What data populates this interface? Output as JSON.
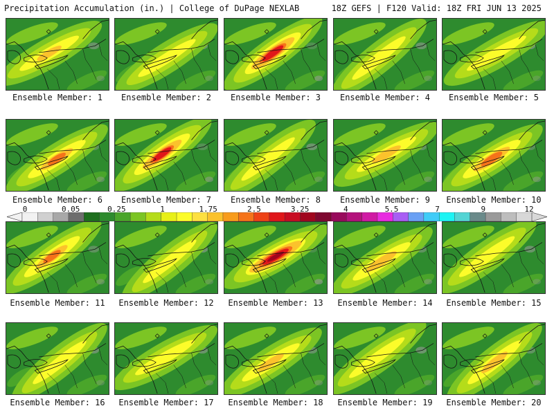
{
  "header": {
    "left": "Precipitation Accumulation (in.) | College of DuPage NEXLAB",
    "right": "18Z GEFS | F120 Valid: 18Z FRI JUN 13 2025"
  },
  "caption_prefix": "Ensemble Member:",
  "members": [
    {
      "id": "1",
      "intensity": 0.35
    },
    {
      "id": "2",
      "intensity": 0.25
    },
    {
      "id": "3",
      "intensity": 0.85
    },
    {
      "id": "4",
      "intensity": 0.3
    },
    {
      "id": "5",
      "intensity": 0.2
    },
    {
      "id": "6",
      "intensity": 0.55
    },
    {
      "id": "7",
      "intensity": 0.75
    },
    {
      "id": "8",
      "intensity": 0.25
    },
    {
      "id": "9",
      "intensity": 0.45
    },
    {
      "id": "10",
      "intensity": 0.65
    },
    {
      "id": "11",
      "intensity": 0.55
    },
    {
      "id": "12",
      "intensity": 0.25
    },
    {
      "id": "13",
      "intensity": 1.0
    },
    {
      "id": "14",
      "intensity": 0.5
    },
    {
      "id": "15",
      "intensity": 0.3
    },
    {
      "id": "16",
      "intensity": 0.3
    },
    {
      "id": "17",
      "intensity": 0.3
    },
    {
      "id": "18",
      "intensity": 0.4
    },
    {
      "id": "19",
      "intensity": 0.25
    },
    {
      "id": "20",
      "intensity": 0.45
    }
  ],
  "colorbar": {
    "ticks": [
      "0",
      "0.05",
      "0.25",
      "1",
      "1.75",
      "2.5",
      "3.25",
      "4",
      "5.5",
      "7",
      "9",
      "12"
    ],
    "colors": [
      "#f2f2f2",
      "#d0d0d0",
      "#a8a8a8",
      "#6e6e6e",
      "#1e6f1e",
      "#2e8b2e",
      "#4aa52a",
      "#7cc524",
      "#b5dc1a",
      "#e8f018",
      "#fcfc2a",
      "#fde040",
      "#fbc22c",
      "#f89c1c",
      "#f5731a",
      "#ee4216",
      "#e0161a",
      "#c80c22",
      "#a0061e",
      "#7e0830",
      "#980a5c",
      "#b4127c",
      "#d01aa4",
      "#e82ce0",
      "#a85ef4",
      "#6aa0f4",
      "#40ccf8",
      "#1ef4f4",
      "#54d4d4",
      "#6a8a8a",
      "#9a9a9a",
      "#bdbdbd",
      "#d8d8d8"
    ]
  }
}
